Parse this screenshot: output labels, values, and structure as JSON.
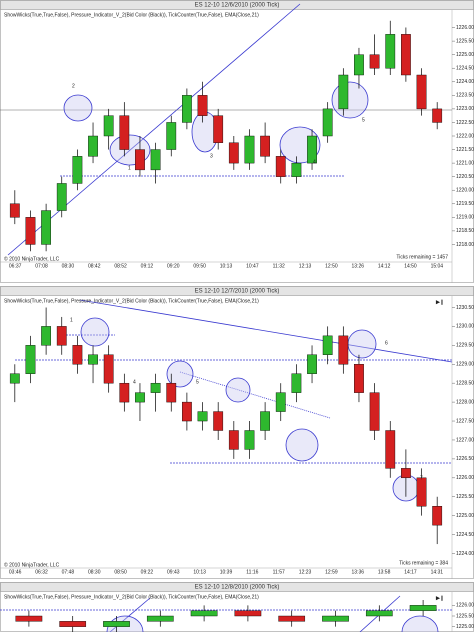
{
  "chart_data": [
    {
      "type": "candlestick",
      "title": "ES 12-10 12/6/2010 (2000 Tick)",
      "indicator": "ShowWicks(True,True,False), Pressure_Indicator_V_2(Bid Color (Black)), TickCounter(True,False), EMA(Close,21)",
      "copyright": "© 2010 NinjaTrader, LLC",
      "ticks_remaining": "Ticks remaining = 1457",
      "time_labels": [
        "06:37",
        "07:08",
        "08:30",
        "08:42",
        "08:52",
        "09:12",
        "09:20",
        "09:50",
        "10:13",
        "10:47",
        "11:32",
        "12:13",
        "12:50",
        "13:26",
        "14:12",
        "14:50",
        "15:04"
      ],
      "ylim": [
        1217.5,
        1226.5
      ],
      "yticks": [
        {
          "value": 1218,
          "label": "1218.00"
        },
        {
          "value": 1218.5,
          "label": "1218.50"
        },
        {
          "value": 1219,
          "label": "1219.00"
        },
        {
          "value": 1219.5,
          "label": "1219.50"
        },
        {
          "value": 1220,
          "label": "1220.00"
        },
        {
          "value": 1220.5,
          "label": "1220.50"
        },
        {
          "value": 1221,
          "label": "1221.00"
        },
        {
          "value": 1221.5,
          "label": "1221.50"
        },
        {
          "value": 1222,
          "label": "1222.00"
        },
        {
          "value": 1222.5,
          "label": "1222.50"
        },
        {
          "value": 1223,
          "label": "1223.00"
        },
        {
          "value": 1223.5,
          "label": "1223.50"
        },
        {
          "value": 1224,
          "label": "1224.00"
        },
        {
          "value": 1224.5,
          "label": "1224.50"
        },
        {
          "value": 1225,
          "label": "1225.00"
        },
        {
          "value": 1225.5,
          "label": "1225.50"
        },
        {
          "value": 1226,
          "label": "1226.00"
        }
      ],
      "annotations": [
        "1",
        "2",
        "3",
        "4",
        "5"
      ],
      "open": [
        1219.5,
        1219,
        1218,
        1219.25,
        1220.25,
        1221.25,
        1222,
        1222.75,
        1221.5,
        1220.75,
        1221.5,
        1222.5,
        1223.5,
        1222.75,
        1221.75,
        1221,
        1222,
        1221.25,
        1220.5,
        1221,
        1222,
        1223,
        1224.25,
        1225,
        1224.5,
        1225.75,
        1224.25,
        1223
      ],
      "high": [
        1220,
        1219.25,
        1219.5,
        1220.5,
        1221.5,
        1222.5,
        1223,
        1223.25,
        1222,
        1221.75,
        1222.75,
        1223.75,
        1224,
        1223,
        1222,
        1222.25,
        1222.5,
        1221.5,
        1221.25,
        1222.25,
        1223.25,
        1224.5,
        1225.25,
        1225.75,
        1226.25,
        1226,
        1224.5,
        1223.25
      ],
      "low": [
        1218.75,
        1217.75,
        1217.75,
        1219,
        1220,
        1221,
        1221.5,
        1221.25,
        1220.5,
        1220.25,
        1221.25,
        1222.25,
        1222.5,
        1221.5,
        1220.75,
        1220.75,
        1221,
        1220.25,
        1220.25,
        1220.75,
        1221.75,
        1222.75,
        1223.75,
        1224.25,
        1224.25,
        1224,
        1222.75,
        1222.25
      ],
      "close": [
        1219,
        1218,
        1219.25,
        1220.25,
        1221.25,
        1222,
        1222.75,
        1221.5,
        1220.75,
        1221.5,
        1222.5,
        1223.5,
        1222.75,
        1221.75,
        1221,
        1222,
        1221.25,
        1220.5,
        1221,
        1222,
        1223,
        1224.25,
        1225,
        1224.5,
        1225.75,
        1224.25,
        1223,
        1222.5
      ]
    },
    {
      "type": "candlestick",
      "title": "ES 12-10 12/7/2010 (2000 Tick)",
      "indicator": "ShowWicks(True,True,False), Pressure_Indicator_V_2(Bid Color (Black)), TickCounter(True,False), EMA(Close,21)",
      "copyright": "© 2010 NinjaTrader, LLC",
      "ticks_remaining": "Ticks remaining = 384",
      "time_labels": [
        "03:46",
        "06:32",
        "07:48",
        "08:30",
        "08:50",
        "09:22",
        "09:43",
        "10:13",
        "10:39",
        "11:16",
        "11:57",
        "12:23",
        "12:59",
        "13:36",
        "13:58",
        "14:17",
        "14:31"
      ],
      "ylim": [
        1223.75,
        1230.75
      ],
      "yticks": [
        {
          "value": 1224,
          "label": "1224.00"
        },
        {
          "value": 1224.5,
          "label": "1224.50"
        },
        {
          "value": 1225,
          "label": "1225.00"
        },
        {
          "value": 1225.5,
          "label": "1225.50"
        },
        {
          "value": 1226,
          "label": "1226.00"
        },
        {
          "value": 1226.5,
          "label": "1226.50"
        },
        {
          "value": 1227,
          "label": "1227.00"
        },
        {
          "value": 1227.5,
          "label": "1227.50"
        },
        {
          "value": 1228,
          "label": "1228.00"
        },
        {
          "value": 1228.5,
          "label": "1228.50"
        },
        {
          "value": 1229,
          "label": "1229.00"
        },
        {
          "value": 1229.5,
          "label": "1229.50"
        },
        {
          "value": 1230,
          "label": "1230.00"
        },
        {
          "value": 1230.5,
          "label": "1230.50"
        }
      ],
      "annotations": [
        "1",
        "4",
        "5",
        "6",
        "7"
      ],
      "open": [
        1228.5,
        1228.75,
        1229.5,
        1230,
        1229.5,
        1229,
        1229.25,
        1228.5,
        1228,
        1228.25,
        1228.5,
        1228,
        1227.5,
        1227.75,
        1227.25,
        1226.75,
        1227.25,
        1227.75,
        1228.25,
        1228.75,
        1229.25,
        1229.75,
        1229,
        1228.25,
        1227.25,
        1226.25,
        1226,
        1225.25
      ],
      "high": [
        1229,
        1229.75,
        1230.5,
        1230.25,
        1229.75,
        1229.5,
        1229.5,
        1228.75,
        1228.5,
        1228.75,
        1228.75,
        1228.25,
        1228,
        1228,
        1227.5,
        1227.5,
        1228,
        1228.5,
        1229,
        1229.5,
        1230,
        1230,
        1229.25,
        1228.5,
        1227.5,
        1226.75,
        1226.25,
        1225.5
      ],
      "low": [
        1228,
        1228.5,
        1229.25,
        1229.25,
        1228.75,
        1228.5,
        1228.25,
        1227.75,
        1227.5,
        1227.75,
        1227.75,
        1227.25,
        1227.25,
        1227,
        1226.5,
        1226.5,
        1227,
        1227.5,
        1228,
        1228.5,
        1229,
        1228.75,
        1228,
        1227,
        1226,
        1225.5,
        1225,
        1224.25
      ],
      "close": [
        1228.75,
        1229.5,
        1230,
        1229.5,
        1229,
        1229.25,
        1228.5,
        1228,
        1228.25,
        1228.5,
        1228,
        1227.5,
        1227.75,
        1227.25,
        1226.75,
        1227.25,
        1227.75,
        1228.25,
        1228.75,
        1229.25,
        1229.75,
        1229,
        1228.25,
        1227.25,
        1226.25,
        1226,
        1225.25,
        1224.75
      ]
    },
    {
      "type": "candlestick",
      "title": "ES 12-10 12/8/2010 (2000 Tick)",
      "indicator": "ShowWicks(True,True,False), Pressure_Indicator_V_2(Bid Color (Black)), TickCounter(True,False), EMA(Close,21)",
      "ylim": [
        1224.75,
        1226.25
      ],
      "yticks": [
        {
          "value": 1225,
          "label": "1225.00"
        },
        {
          "value": 1225.5,
          "label": "1225.50"
        },
        {
          "value": 1226,
          "label": "1226.00"
        }
      ],
      "open": [
        1225.5,
        1225.25,
        1225,
        1225.25,
        1225.5,
        1225.75,
        1225.5,
        1225.25,
        1225.5,
        1225.75
      ],
      "high": [
        1225.75,
        1225.5,
        1225.5,
        1225.75,
        1226,
        1226,
        1225.75,
        1225.75,
        1226,
        1226.25
      ],
      "low": [
        1225,
        1224.75,
        1224.75,
        1225,
        1225.25,
        1225.25,
        1225,
        1225,
        1225.25,
        1225.5
      ],
      "close": [
        1225.25,
        1225,
        1225.25,
        1225.5,
        1225.75,
        1225.5,
        1225.25,
        1225.5,
        1225.75,
        1226
      ]
    }
  ]
}
